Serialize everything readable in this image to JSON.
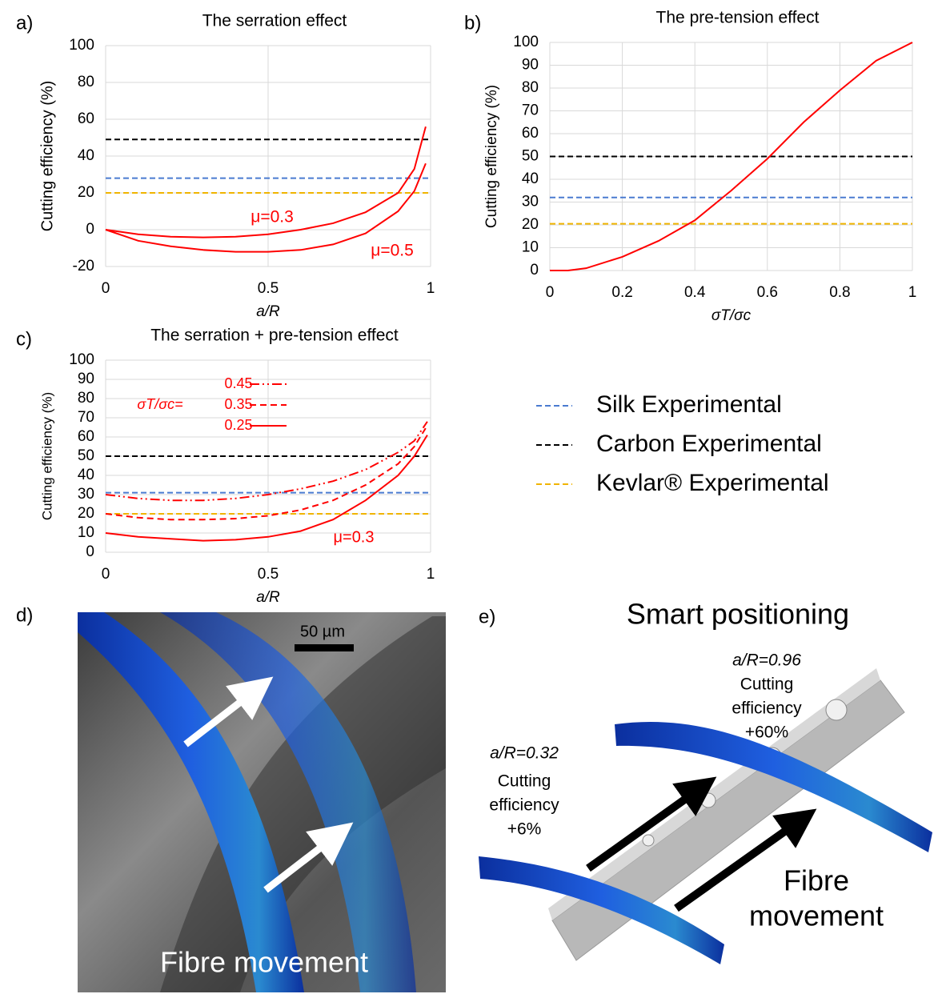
{
  "chart_data": [
    {
      "type": "line",
      "label": "a)",
      "title": "The serration effect",
      "xlabel": "a/R",
      "ylabel": "Cutting efficiency (%)",
      "x": [
        0,
        0.1,
        0.2,
        0.3,
        0.4,
        0.5,
        0.6,
        0.7,
        0.8,
        0.9,
        0.95,
        0.985
      ],
      "series": [
        {
          "name": "μ=0.3",
          "color": "#ff0000",
          "dash": "solid",
          "values": [
            0,
            -2.5,
            -3.8,
            -4.2,
            -3.8,
            -2.5,
            0,
            3.5,
            9.5,
            20,
            33,
            56
          ]
        },
        {
          "name": "μ=0.5",
          "color": "#ff0000",
          "dash": "solid",
          "values": [
            0,
            -6,
            -9,
            -11,
            -12,
            -12,
            -11,
            -8,
            -2,
            10,
            21,
            36
          ]
        }
      ],
      "reference_lines": [
        28,
        49,
        20
      ],
      "xlim": [
        0,
        1
      ],
      "xticks": [
        0,
        0.5,
        1
      ],
      "ylim": [
        -20,
        100
      ],
      "yticks": [
        -20,
        0,
        20,
        40,
        60,
        80,
        100
      ],
      "grid": true
    },
    {
      "type": "line",
      "label": "b)",
      "title": "The pre-tension effect",
      "xlabel": "σT/σc",
      "ylabel": "Cutting efficiency (%)",
      "x": [
        0,
        0.05,
        0.1,
        0.2,
        0.3,
        0.4,
        0.5,
        0.6,
        0.7,
        0.8,
        0.9,
        1
      ],
      "series": [
        {
          "color": "#ff0000",
          "dash": "solid",
          "values": [
            0,
            0,
            1,
            6,
            13,
            22,
            35,
            49,
            65,
            79,
            92,
            100
          ]
        }
      ],
      "reference_lines": [
        32,
        50,
        20.5
      ],
      "xlim": [
        0,
        1
      ],
      "xticks": [
        0,
        0.2,
        0.4,
        0.6,
        0.8,
        1
      ],
      "ylim": [
        0,
        100
      ],
      "yticks": [
        0,
        10,
        20,
        30,
        40,
        50,
        60,
        70,
        80,
        90,
        100
      ],
      "grid": true
    },
    {
      "type": "line",
      "label": "c)",
      "title": "The serration + pre-tension effect",
      "xlabel": "a/R",
      "ylabel": "Cutting efficiency (%)",
      "legend_title": "σT/σc=",
      "annotation": "μ=0.3",
      "x": [
        0,
        0.1,
        0.2,
        0.3,
        0.4,
        0.5,
        0.6,
        0.7,
        0.8,
        0.9,
        0.95,
        0.99
      ],
      "series": [
        {
          "name": "0.45",
          "color": "#ff0000",
          "dash": "dashdot",
          "values": [
            30,
            28,
            27,
            27,
            28,
            30,
            33,
            37,
            43,
            52,
            58,
            68
          ]
        },
        {
          "name": "0.35",
          "color": "#ff0000",
          "dash": "dashed",
          "values": [
            20,
            18,
            17,
            17,
            17.5,
            19,
            22,
            27,
            35,
            46,
            55,
            66
          ]
        },
        {
          "name": "0.25",
          "color": "#ff0000",
          "dash": "solid",
          "values": [
            10,
            8,
            7,
            6,
            6.5,
            8,
            11,
            17,
            27,
            40,
            50,
            61
          ]
        }
      ],
      "reference_lines": [
        31,
        50,
        20
      ],
      "xlim": [
        0,
        1
      ],
      "xticks": [
        0,
        0.5,
        1
      ],
      "ylim": [
        0,
        100
      ],
      "yticks": [
        0,
        10,
        20,
        30,
        40,
        50,
        60,
        70,
        80,
        90,
        100
      ],
      "grid": true
    }
  ],
  "legend": [
    {
      "name": "Silk Experimental",
      "color": "#4a7bd0"
    },
    {
      "name": "Carbon Experimental",
      "color": "#000000"
    },
    {
      "name": "Kevlar® Experimental",
      "color": "#f0b400"
    }
  ],
  "panel_d": {
    "label": "d)",
    "scale_bar": "50 µm",
    "caption": "Fibre movement"
  },
  "panel_e": {
    "label": "e)",
    "title": "Smart positioning",
    "left_note": {
      "ratio": "a/R=0.32",
      "lines": [
        "Cutting",
        "efficiency",
        "+6%"
      ]
    },
    "right_note": {
      "ratio": "a/R=0.96",
      "lines": [
        "Cutting",
        "efficiency",
        "+60%"
      ]
    },
    "caption": [
      "Fibre",
      "movement"
    ]
  }
}
